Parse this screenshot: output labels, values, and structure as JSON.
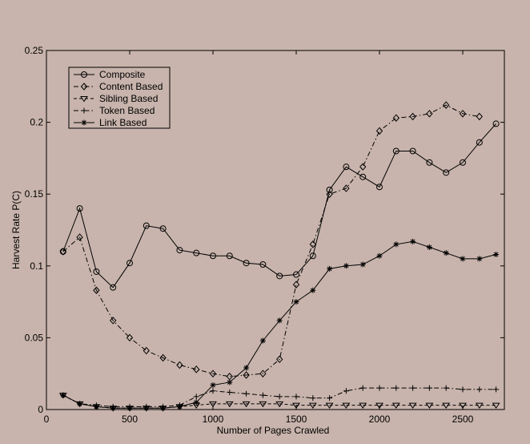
{
  "chart_data": {
    "type": "line",
    "title": "",
    "xlabel": "Number of Pages Crawled",
    "ylabel": "Harvest Rate P(C)",
    "xlim": [
      0,
      2750
    ],
    "ylim": [
      0,
      0.25
    ],
    "xticks": [
      0,
      500,
      1000,
      1500,
      2000,
      2500
    ],
    "yticks": [
      0,
      0.05,
      0.1,
      0.15,
      0.2,
      0.25
    ],
    "xtick_labels": [
      "0",
      "500",
      "1000",
      "1500",
      "2000",
      "2500"
    ],
    "ytick_labels": [
      "0",
      "0.05",
      "0.1",
      "0.15",
      "0.2",
      "0.25"
    ],
    "grid": false,
    "legend_position": "top-left",
    "series": [
      {
        "name": "Composite",
        "marker": "circle",
        "line_style": "solid",
        "x": [
          100,
          200,
          300,
          400,
          500,
          600,
          700,
          800,
          900,
          1000,
          1100,
          1200,
          1300,
          1400,
          1500,
          1600,
          1700,
          1800,
          1900,
          2000,
          2100,
          2200,
          2300,
          2400,
          2500,
          2600,
          2700
        ],
        "y": [
          0.11,
          0.14,
          0.096,
          0.085,
          0.102,
          0.128,
          0.126,
          0.111,
          0.109,
          0.107,
          0.107,
          0.102,
          0.101,
          0.093,
          0.094,
          0.107,
          0.153,
          0.169,
          0.162,
          0.155,
          0.18,
          0.18,
          0.172,
          0.165,
          0.172,
          0.186,
          0.199
        ]
      },
      {
        "name": "Content Based",
        "marker": "diamond",
        "line_style": "dashdot",
        "x": [
          100,
          200,
          300,
          400,
          500,
          600,
          700,
          800,
          900,
          1000,
          1100,
          1200,
          1300,
          1400,
          1500,
          1600,
          1700,
          1800,
          1900,
          2000,
          2100,
          2200,
          2300,
          2400,
          2500,
          2600
        ],
        "y": [
          0.11,
          0.12,
          0.083,
          0.062,
          0.05,
          0.041,
          0.036,
          0.031,
          0.028,
          0.025,
          0.023,
          0.024,
          0.025,
          0.035,
          0.087,
          0.115,
          0.15,
          0.154,
          0.169,
          0.194,
          0.203,
          0.204,
          0.206,
          0.212,
          0.206,
          0.204
        ]
      },
      {
        "name": "Sibling Based",
        "marker": "triangle-down",
        "line_style": "dashed",
        "x": [
          100,
          200,
          300,
          400,
          500,
          600,
          700,
          800,
          900,
          1000,
          1100,
          1200,
          1300,
          1400,
          1500,
          1600,
          1700,
          1800,
          1900,
          2000,
          2100,
          2200,
          2300,
          2400,
          2500,
          2600,
          2700
        ],
        "y": [
          0.01,
          0.004,
          0.002,
          0.001,
          0.001,
          0.001,
          0.001,
          0.002,
          0.003,
          0.004,
          0.004,
          0.004,
          0.004,
          0.004,
          0.003,
          0.003,
          0.003,
          0.003,
          0.003,
          0.003,
          0.003,
          0.003,
          0.003,
          0.003,
          0.003,
          0.003,
          0.003
        ]
      },
      {
        "name": "Token Based",
        "marker": "plus",
        "line_style": "dashdot",
        "x": [
          100,
          200,
          300,
          400,
          500,
          600,
          700,
          800,
          900,
          1000,
          1100,
          1200,
          1300,
          1400,
          1500,
          1600,
          1700,
          1800,
          1900,
          2000,
          2100,
          2200,
          2300,
          2400,
          2500,
          2600,
          2700
        ],
        "y": [
          0.01,
          0.004,
          0.003,
          0.002,
          0.002,
          0.002,
          0.002,
          0.003,
          0.009,
          0.013,
          0.012,
          0.011,
          0.01,
          0.009,
          0.009,
          0.008,
          0.008,
          0.013,
          0.015,
          0.015,
          0.015,
          0.015,
          0.015,
          0.015,
          0.014,
          0.014,
          0.014
        ]
      },
      {
        "name": "Link Based",
        "marker": "star",
        "line_style": "solid",
        "x": [
          100,
          200,
          300,
          400,
          500,
          600,
          700,
          800,
          900,
          1000,
          1100,
          1200,
          1300,
          1400,
          1500,
          1600,
          1700,
          1800,
          1900,
          2000,
          2100,
          2200,
          2300,
          2400,
          2500,
          2600,
          2700
        ],
        "y": [
          0.01,
          0.004,
          0.002,
          0.001,
          0.001,
          0.001,
          0.001,
          0.002,
          0.005,
          0.017,
          0.019,
          0.029,
          0.048,
          0.062,
          0.075,
          0.083,
          0.098,
          0.1,
          0.101,
          0.107,
          0.115,
          0.117,
          0.113,
          0.109,
          0.105,
          0.105,
          0.108
        ]
      }
    ]
  }
}
